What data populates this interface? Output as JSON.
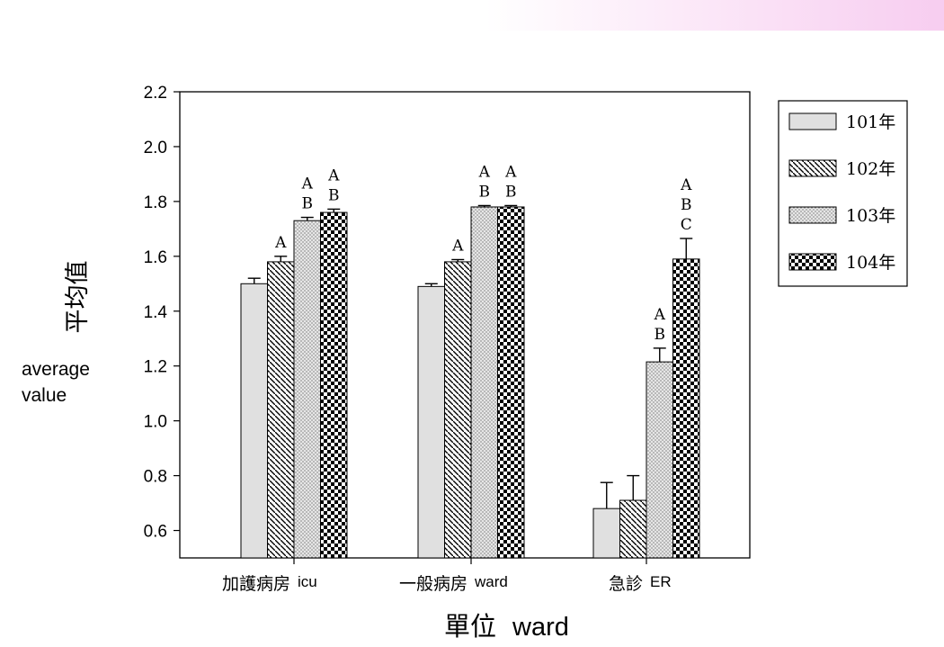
{
  "colors": {
    "banner_start": "#ffffff",
    "banner_end": "#f7cdf0",
    "axis": "#000000",
    "bar_101": "#e0e0e0",
    "hatch_102": "#ffffff",
    "dots_103": "#e6e6e6",
    "checker_104": "#000000"
  },
  "y_axis": {
    "label_cn": "平均值",
    "label_en_line1": "average",
    "label_en_line2": "value"
  },
  "x_axis": {
    "label_cn": "單位",
    "label_en": "ward"
  },
  "chart_data": {
    "type": "bar",
    "categories": [
      {
        "label_cn": "加護病房",
        "label_en": "icu"
      },
      {
        "label_cn": "一般病房",
        "label_en": "ward"
      },
      {
        "label_cn": "急診",
        "label_en": "ER"
      }
    ],
    "series": [
      {
        "name": "101年",
        "pattern": "solid",
        "values": [
          1.5,
          1.49,
          0.68
        ],
        "errors": [
          0.02,
          0.01,
          0.095
        ]
      },
      {
        "name": "102年",
        "pattern": "hatch",
        "values": [
          1.58,
          1.58,
          0.71
        ],
        "errors": [
          0.02,
          0.008,
          0.09
        ]
      },
      {
        "name": "103年",
        "pattern": "dots",
        "values": [
          1.73,
          1.78,
          1.215
        ],
        "errors": [
          0.012,
          0.005,
          0.05
        ]
      },
      {
        "name": "104年",
        "pattern": "checker",
        "values": [
          1.76,
          1.78,
          1.59
        ],
        "errors": [
          0.012,
          0.005,
          0.075
        ]
      }
    ],
    "annotations": [
      [
        "",
        "A",
        "A\nB",
        "A\nB"
      ],
      [
        "",
        "A",
        "A\nB",
        "A\nB"
      ],
      [
        "",
        "",
        "A\nB",
        "A\nB\nC"
      ]
    ],
    "ylim": [
      0.5,
      2.2
    ],
    "yticks": [
      "0.6",
      "0.8",
      "1.0",
      "1.2",
      "1.4",
      "1.6",
      "1.8",
      "2.0",
      "2.2"
    ],
    "ytick_values": [
      0.6,
      0.8,
      1.0,
      1.2,
      1.4,
      1.6,
      1.8,
      2.0,
      2.2
    ],
    "grid": false,
    "legend_position": "right"
  }
}
